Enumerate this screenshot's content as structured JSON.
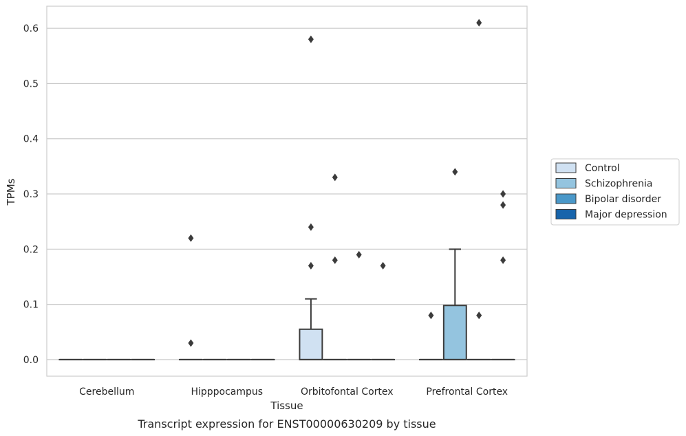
{
  "chart_data": {
    "type": "box",
    "xlabel": "Tissue",
    "ylabel": "TPMs",
    "caption": "Transcript expression for ENST00000630209 by tissue",
    "ylim": [
      -0.03,
      0.64
    ],
    "yticks": [
      0.0,
      0.1,
      0.2,
      0.3,
      0.4,
      0.5,
      0.6
    ],
    "ytick_labels": [
      "0.0",
      "0.1",
      "0.2",
      "0.3",
      "0.4",
      "0.5",
      "0.6"
    ],
    "grid": "horizontal",
    "legend_position": "right",
    "categories": [
      "Cerebellum",
      "Hipppocampus",
      "Orbitofontal Cortex",
      "Prefrontal Cortex"
    ],
    "series": [
      {
        "name": "Control",
        "color": "#d0e1f2",
        "boxes": [
          {
            "q1": 0,
            "median": 0,
            "q3": 0,
            "whislo": 0,
            "whishi": 0,
            "fliers": []
          },
          {
            "q1": 0,
            "median": 0,
            "q3": 0,
            "whislo": 0,
            "whishi": 0,
            "fliers": [
              0.22,
              0.03
            ]
          },
          {
            "q1": 0,
            "median": 0,
            "q3": 0.055,
            "whislo": 0,
            "whishi": 0.11,
            "fliers": [
              0.58,
              0.24,
              0.17
            ]
          },
          {
            "q1": 0,
            "median": 0,
            "q3": 0,
            "whislo": 0,
            "whishi": 0,
            "fliers": [
              0.08
            ]
          }
        ]
      },
      {
        "name": "Schizophrenia",
        "color": "#94c4df",
        "boxes": [
          {
            "q1": 0,
            "median": 0,
            "q3": 0,
            "whislo": 0,
            "whishi": 0,
            "fliers": []
          },
          {
            "q1": 0,
            "median": 0,
            "q3": 0,
            "whislo": 0,
            "whishi": 0,
            "fliers": []
          },
          {
            "q1": 0,
            "median": 0,
            "q3": 0,
            "whislo": 0,
            "whishi": 0,
            "fliers": [
              0.33,
              0.18
            ]
          },
          {
            "q1": 0,
            "median": 0,
            "q3": 0.098,
            "whislo": 0,
            "whishi": 0.2,
            "fliers": [
              0.34
            ]
          }
        ]
      },
      {
        "name": "Bipolar disorder",
        "color": "#4a98c9",
        "boxes": [
          {
            "q1": 0,
            "median": 0,
            "q3": 0,
            "whislo": 0,
            "whishi": 0,
            "fliers": []
          },
          {
            "q1": 0,
            "median": 0,
            "q3": 0,
            "whislo": 0,
            "whishi": 0,
            "fliers": []
          },
          {
            "q1": 0,
            "median": 0,
            "q3": 0,
            "whislo": 0,
            "whishi": 0,
            "fliers": [
              0.19
            ]
          },
          {
            "q1": 0,
            "median": 0,
            "q3": 0,
            "whislo": 0,
            "whishi": 0,
            "fliers": [
              0.61,
              0.08
            ]
          }
        ]
      },
      {
        "name": "Major depression",
        "color": "#1764ab",
        "boxes": [
          {
            "q1": 0,
            "median": 0,
            "q3": 0,
            "whislo": 0,
            "whishi": 0,
            "fliers": []
          },
          {
            "q1": 0,
            "median": 0,
            "q3": 0,
            "whislo": 0,
            "whishi": 0,
            "fliers": []
          },
          {
            "q1": 0,
            "median": 0,
            "q3": 0,
            "whislo": 0,
            "whishi": 0,
            "fliers": [
              0.17
            ]
          },
          {
            "q1": 0,
            "median": 0,
            "q3": 0,
            "whislo": 0,
            "whishi": 0,
            "fliers": [
              0.3,
              0.28,
              0.18
            ]
          }
        ]
      }
    ]
  }
}
